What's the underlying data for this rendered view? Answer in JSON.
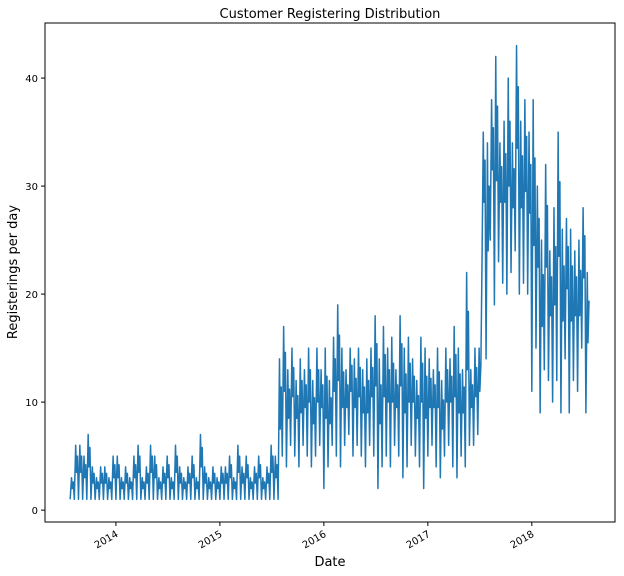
{
  "chart_data": {
    "type": "line",
    "title": "Customer Registering Distribution",
    "xlabel": "Date",
    "ylabel": "Registerings per day",
    "xlim": [
      2013.318,
      2018.8
    ],
    "ylim": [
      -1.1,
      45.1
    ],
    "xticks": [
      2014,
      2015,
      2016,
      2017,
      2018
    ],
    "xtick_labels": [
      "2014",
      "2015",
      "2016",
      "2017",
      "2018"
    ],
    "yticks": [
      0,
      10,
      20,
      30,
      40
    ],
    "ytick_labels": [
      "0",
      "10",
      "20",
      "30",
      "40"
    ],
    "grid": false,
    "color": "#1f77b4",
    "series": [
      {
        "name": "registerings",
        "x_start": 2013.56,
        "x_step_years": 0.04,
        "lows": [
          1,
          1,
          1,
          1,
          1,
          1,
          1,
          1,
          1,
          1,
          1,
          1,
          1,
          1,
          1,
          1,
          1,
          1,
          1,
          1,
          1,
          1,
          1,
          1,
          1,
          1,
          1,
          1,
          1,
          1,
          1,
          1,
          1,
          1,
          1,
          1,
          1,
          1,
          1,
          1,
          1,
          1,
          1,
          1,
          1,
          1,
          1,
          1,
          1,
          1,
          1,
          5,
          4,
          6,
          5,
          4,
          6,
          5,
          4,
          5,
          6,
          2,
          4,
          6,
          5,
          4,
          6,
          7,
          5,
          6,
          5,
          4,
          6,
          5,
          2,
          4,
          5,
          4,
          6,
          5,
          3,
          4,
          6,
          5,
          4,
          2,
          5,
          6,
          4,
          3,
          5,
          6,
          4,
          3,
          5,
          4,
          6,
          6,
          7,
          22,
          14,
          25,
          19,
          23,
          21,
          20,
          22,
          24,
          20,
          21,
          20,
          11,
          15,
          9,
          13,
          12,
          10,
          12,
          9,
          14,
          9,
          12,
          11,
          15,
          9
        ],
        "highs": [
          3,
          6,
          6,
          5,
          7,
          4,
          3,
          4,
          4,
          3,
          5,
          5,
          3,
          4,
          3,
          5,
          6,
          3,
          4,
          6,
          5,
          3,
          4,
          5,
          3,
          6,
          4,
          3,
          4,
          5,
          3,
          7,
          4,
          3,
          4,
          3,
          4,
          4,
          5,
          3,
          6,
          4,
          5,
          3,
          4,
          5,
          3,
          4,
          6,
          5,
          14,
          17,
          13,
          15,
          12,
          14,
          13,
          15,
          12,
          15,
          13,
          15,
          12,
          16,
          19,
          15,
          13,
          15,
          14,
          15,
          13,
          14,
          15,
          18,
          14,
          17,
          15,
          16,
          13,
          18,
          15,
          16,
          14,
          12,
          16,
          15,
          14,
          13,
          15,
          12,
          15,
          14,
          17,
          15,
          13,
          22,
          13,
          15,
          15,
          35,
          34,
          38,
          42,
          34,
          36,
          40,
          34,
          43,
          36,
          38,
          35,
          38,
          30,
          25,
          32,
          24,
          28,
          35,
          26,
          27,
          26,
          24,
          25,
          28,
          22
        ]
      }
    ]
  }
}
